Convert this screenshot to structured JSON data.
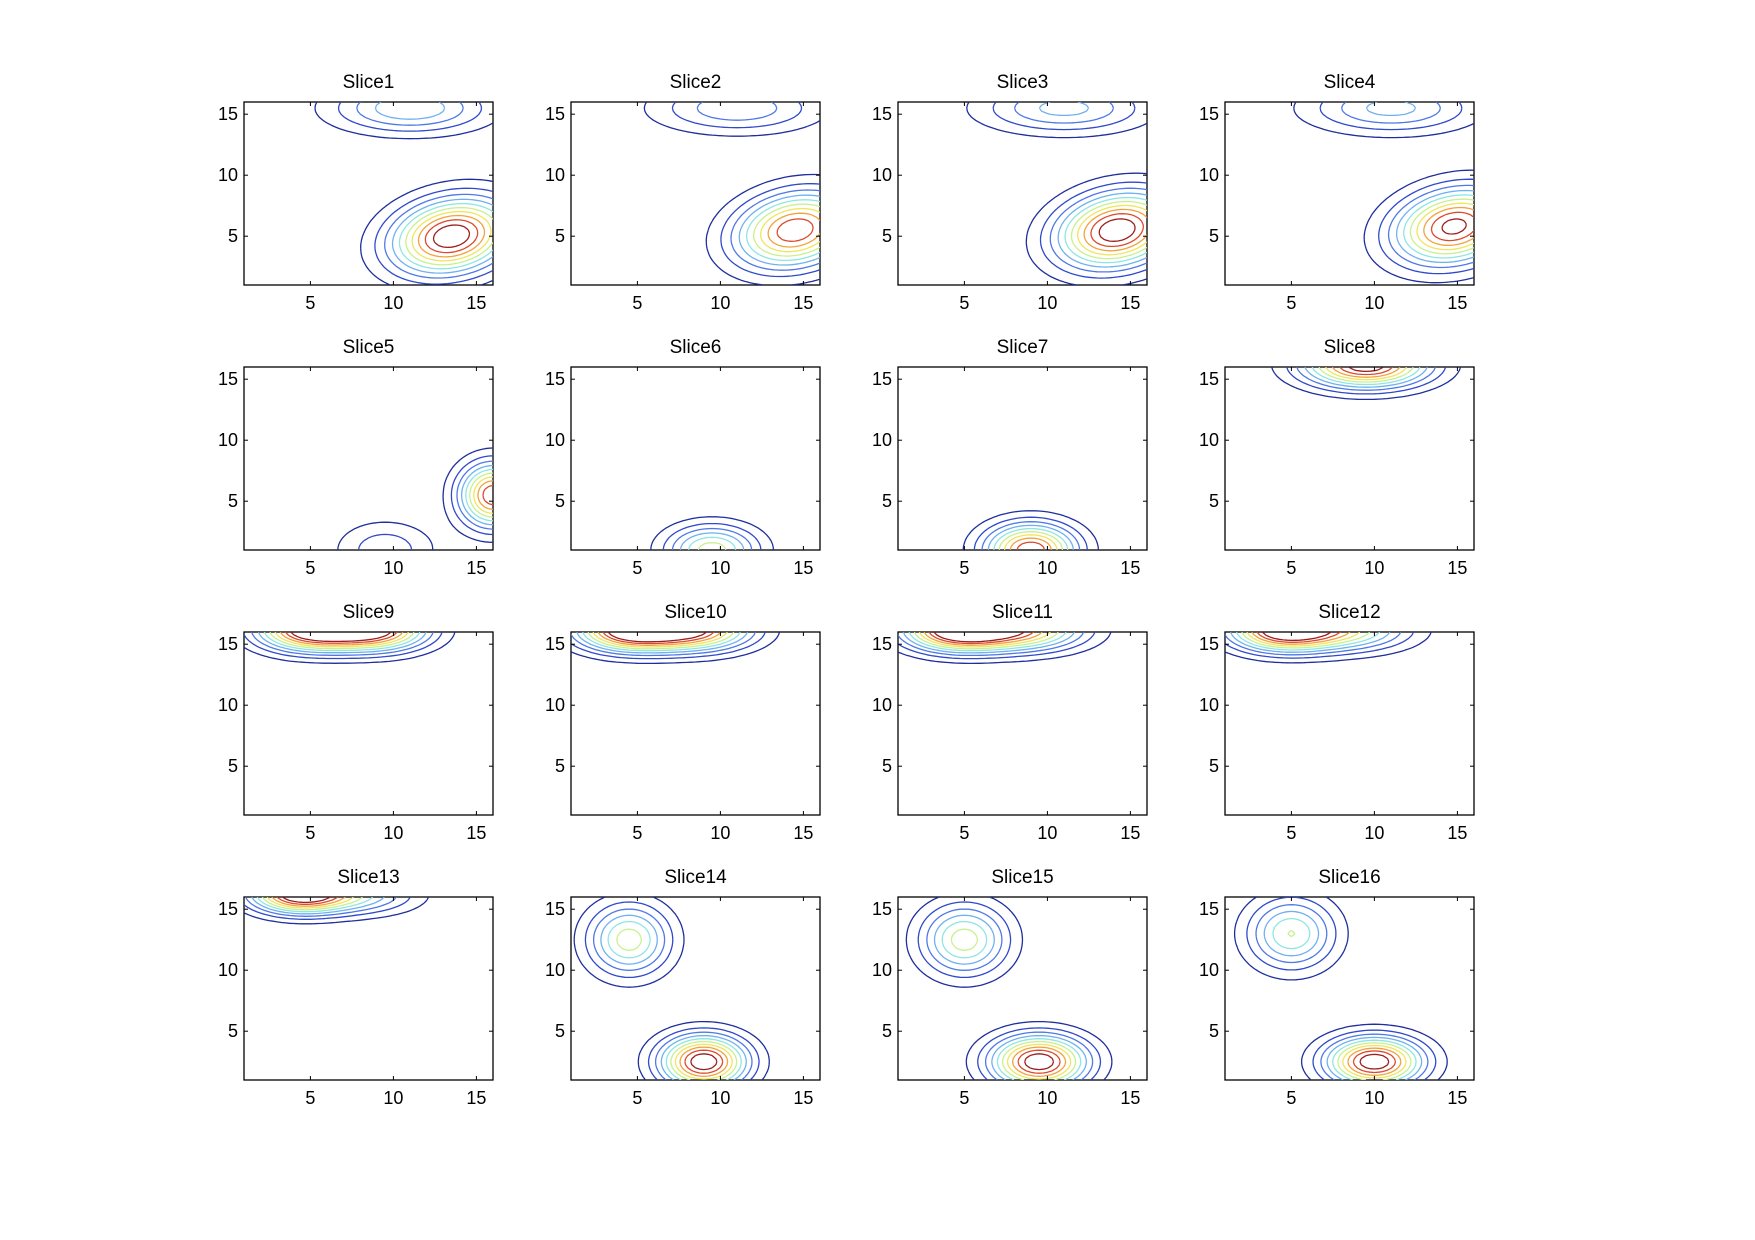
{
  "chart_data": {
    "type": "contour",
    "grid": {
      "rows": 4,
      "cols": 4
    },
    "xlim": [
      1,
      16
    ],
    "ylim": [
      1,
      16
    ],
    "xticks": [
      "5",
      "10",
      "15"
    ],
    "yticks": [
      "5",
      "10",
      "15"
    ],
    "levels": 10,
    "colors": [
      "#1f2e9c",
      "#2f49c9",
      "#4f78e6",
      "#6fb1f0",
      "#8ee6e2",
      "#c9f08f",
      "#f1e45e",
      "#f2a23c",
      "#dc4a2c",
      "#9c1d1d"
    ],
    "panels": [
      {
        "title": "Slice1",
        "peaks": [
          {
            "x": 13.5,
            "y": 5,
            "a": 1.0,
            "sx": 2.6,
            "sy": 2.0,
            "rot": 0.45
          },
          {
            "x": 11,
            "y": 15.5,
            "a": 0.45,
            "sx": 3.2,
            "sy": 1.4,
            "rot": 0
          }
        ]
      },
      {
        "title": "Slice2",
        "peaks": [
          {
            "x": 14.5,
            "y": 5.5,
            "a": 0.9,
            "sx": 2.6,
            "sy": 2.0,
            "rot": 0.45
          },
          {
            "x": 11,
            "y": 15.5,
            "a": 0.35,
            "sx": 3.4,
            "sy": 1.4,
            "rot": 0
          }
        ]
      },
      {
        "title": "Slice3",
        "peaks": [
          {
            "x": 14.2,
            "y": 5.5,
            "a": 1.0,
            "sx": 2.6,
            "sy": 2.0,
            "rot": 0.45
          },
          {
            "x": 11,
            "y": 15.5,
            "a": 0.4,
            "sx": 3.4,
            "sy": 1.4,
            "rot": 0
          }
        ]
      },
      {
        "title": "Slice4",
        "peaks": [
          {
            "x": 14.8,
            "y": 5.8,
            "a": 0.95,
            "sx": 2.6,
            "sy": 2.0,
            "rot": 0.45
          },
          {
            "x": 11,
            "y": 15.5,
            "a": 0.4,
            "sx": 3.4,
            "sy": 1.4,
            "rot": 0
          }
        ]
      },
      {
        "title": "Slice5",
        "peaks": [
          {
            "x": 16,
            "y": 5.5,
            "a": 0.9,
            "sx": 1.4,
            "sy": 1.8,
            "rot": 0
          },
          {
            "x": 9.5,
            "y": 1,
            "a": 0.25,
            "sx": 2.0,
            "sy": 1.6,
            "rot": 0
          }
        ]
      },
      {
        "title": "Slice6",
        "peaks": [
          {
            "x": 9.5,
            "y": 1,
            "a": 0.6,
            "sx": 1.9,
            "sy": 1.4,
            "rot": 0
          }
        ]
      },
      {
        "title": "Slice7",
        "peaks": [
          {
            "x": 9,
            "y": 1,
            "a": 0.9,
            "sx": 1.9,
            "sy": 1.5,
            "rot": 0
          }
        ]
      },
      {
        "title": "Slice8",
        "peaks": [
          {
            "x": 9.5,
            "y": 16.2,
            "a": 1.0,
            "sx": 2.6,
            "sy": 1.3,
            "rot": 0
          }
        ]
      },
      {
        "title": "Slice9",
        "peaks": [
          {
            "x": 5,
            "y": 16.2,
            "a": 1.0,
            "sx": 2.2,
            "sy": 1.2,
            "rot": 0
          },
          {
            "x": 9,
            "y": 16.2,
            "a": 0.9,
            "sx": 2.2,
            "sy": 1.2,
            "rot": 0
          }
        ]
      },
      {
        "title": "Slice10",
        "peaks": [
          {
            "x": 4.5,
            "y": 16.2,
            "a": 1.0,
            "sx": 2.2,
            "sy": 1.2,
            "rot": 0
          },
          {
            "x": 8.5,
            "y": 16.2,
            "a": 0.85,
            "sx": 2.4,
            "sy": 1.2,
            "rot": 0
          }
        ]
      },
      {
        "title": "Slice11",
        "peaks": [
          {
            "x": 4.5,
            "y": 16.2,
            "a": 1.0,
            "sx": 2.2,
            "sy": 1.2,
            "rot": 0
          },
          {
            "x": 8.5,
            "y": 16.2,
            "a": 0.75,
            "sx": 2.6,
            "sy": 1.2,
            "rot": 0
          }
        ]
      },
      {
        "title": "Slice12",
        "peaks": [
          {
            "x": 4.5,
            "y": 16.2,
            "a": 1.0,
            "sx": 2.2,
            "sy": 1.2,
            "rot": 0
          },
          {
            "x": 8.5,
            "y": 16.2,
            "a": 0.55,
            "sx": 2.6,
            "sy": 1.2,
            "rot": 0
          }
        ]
      },
      {
        "title": "Slice13",
        "peaks": [
          {
            "x": 4.3,
            "y": 16.3,
            "a": 1.0,
            "sx": 2.0,
            "sy": 1.1,
            "rot": 0
          },
          {
            "x": 8,
            "y": 16.2,
            "a": 0.4,
            "sx": 2.4,
            "sy": 1.1,
            "rot": 0
          }
        ]
      },
      {
        "title": "Slice14",
        "peaks": [
          {
            "x": 9,
            "y": 2.5,
            "a": 1.0,
            "sx": 1.8,
            "sy": 1.5,
            "rot": 0
          },
          {
            "x": 4.5,
            "y": 12.5,
            "a": 0.6,
            "sx": 1.7,
            "sy": 2.0,
            "rot": 0
          }
        ]
      },
      {
        "title": "Slice15",
        "peaks": [
          {
            "x": 9.5,
            "y": 2.5,
            "a": 1.0,
            "sx": 2.0,
            "sy": 1.5,
            "rot": 0
          },
          {
            "x": 5,
            "y": 12.5,
            "a": 0.6,
            "sx": 1.8,
            "sy": 2.0,
            "rot": 0
          }
        ]
      },
      {
        "title": "Slice16",
        "peaks": [
          {
            "x": 10,
            "y": 2.5,
            "a": 1.0,
            "sx": 2.0,
            "sy": 1.4,
            "rot": 0
          },
          {
            "x": 5,
            "y": 13,
            "a": 0.55,
            "sx": 1.8,
            "sy": 2.0,
            "rot": 0
          }
        ]
      }
    ]
  }
}
